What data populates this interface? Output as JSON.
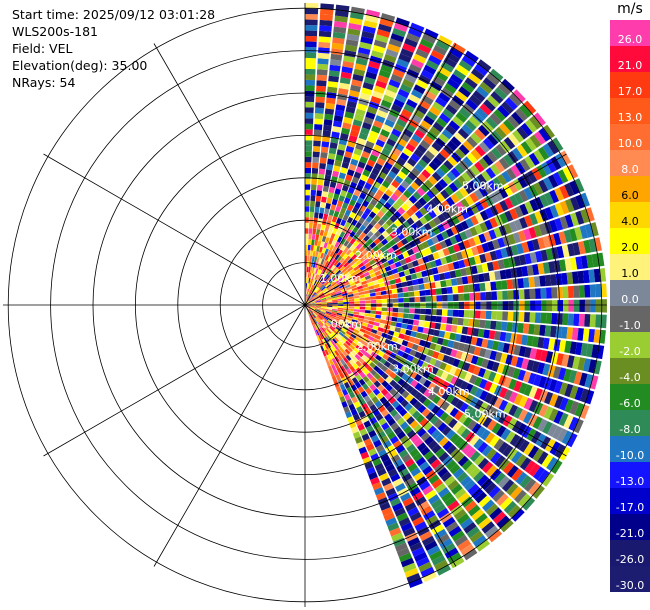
{
  "meta": {
    "start_time": "Start time: 2025/09/12 03:01:28",
    "instrument": "WLS200s-181",
    "field": "Field: VEL",
    "elevation": "Elevation(deg): 35.00",
    "nrays": "NRays: 54"
  },
  "colorbar": {
    "unit": "m/s",
    "entries": [
      {
        "label": "26.0",
        "color": "#ff3cac"
      },
      {
        "label": "21.0",
        "color": "#ff0a3a"
      },
      {
        "label": "17.0",
        "color": "#ff3a10"
      },
      {
        "label": "13.0",
        "color": "#ff5a1a"
      },
      {
        "label": "10.0",
        "color": "#ff6e30"
      },
      {
        "label": "8.0",
        "color": "#ff8a52"
      },
      {
        "label": "6.0",
        "color": "#ffa500"
      },
      {
        "label": "4.0",
        "color": "#ffd700"
      },
      {
        "label": "2.0",
        "color": "#ffff00"
      },
      {
        "label": "1.0",
        "color": "#fff27a"
      },
      {
        "label": "0.0",
        "color": "#7c8899"
      },
      {
        "label": "-1.0",
        "color": "#666666"
      },
      {
        "label": "-2.0",
        "color": "#9acd32"
      },
      {
        "label": "-4.0",
        "color": "#6b8e23"
      },
      {
        "label": "-6.0",
        "color": "#228b22"
      },
      {
        "label": "-8.0",
        "color": "#2e8b57"
      },
      {
        "label": "-10.0",
        "color": "#1f77c4"
      },
      {
        "label": "-13.0",
        "color": "#1414ff"
      },
      {
        "label": "-17.0",
        "color": "#0000cd"
      },
      {
        "label": "-21.0",
        "color": "#00008b"
      },
      {
        "label": "-26.0",
        "color": "#191970"
      },
      {
        "label": "-30.0",
        "color": "#1c1c70"
      }
    ]
  },
  "range_rings": [
    "1.00km",
    "2.00km",
    "3.00km",
    "4.00km",
    "5.00km"
  ],
  "sector": {
    "azimuth_start_deg": 0,
    "azimuth_end_deg": 160,
    "nrays": 54,
    "max_range_km": 5.0
  }
}
